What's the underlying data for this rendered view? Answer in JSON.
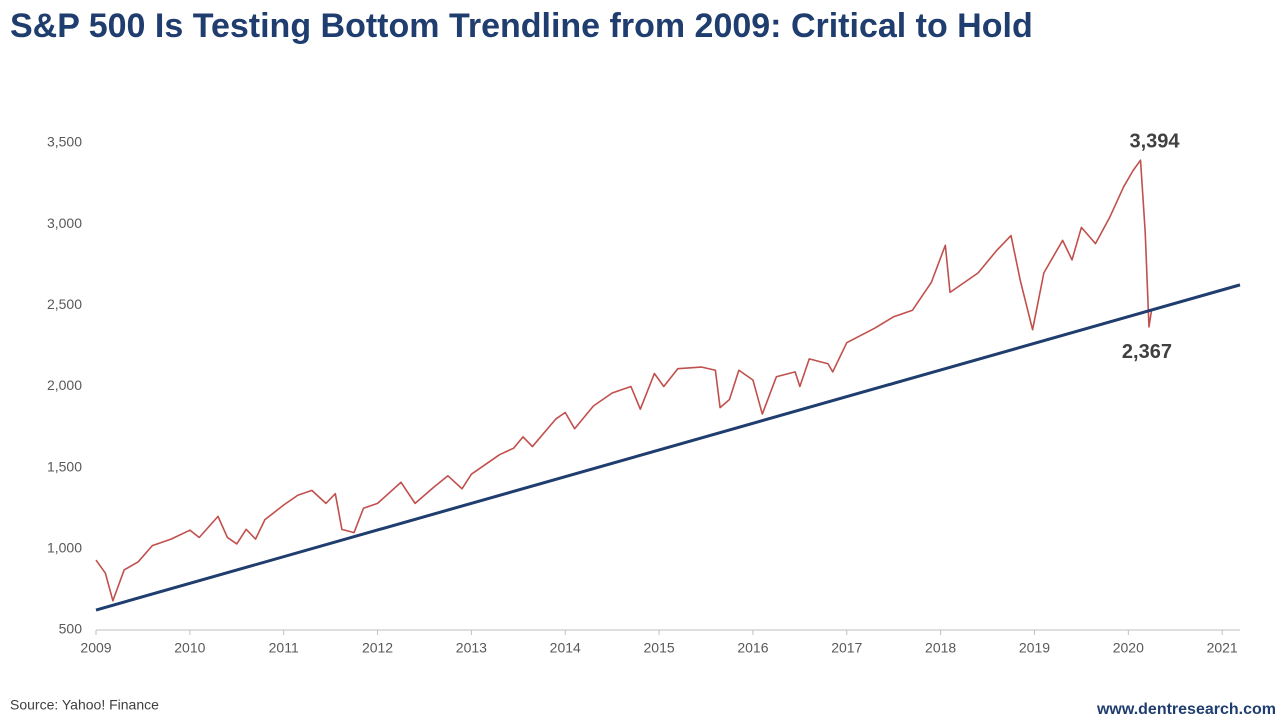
{
  "chart_data": {
    "type": "line",
    "title": "S&P 500 Is Testing Bottom Trendline from 2009: Critical to Hold",
    "source": "Source: Yahoo! Finance",
    "website": "www.dentresearch.com",
    "annotations": [
      {
        "text": "3,394"
      },
      {
        "text": "2,367"
      }
    ],
    "xlim": [
      2009,
      2021.19
    ],
    "xticks": [
      2009,
      2010,
      2011,
      2012,
      2013,
      2014,
      2015,
      2016,
      2017,
      2018,
      2019,
      2020,
      2021
    ],
    "ylim": [
      500,
      3500
    ],
    "yticks": [
      {
        "value": 500,
        "label": "500"
      },
      {
        "value": 1000,
        "label": "1,000"
      },
      {
        "value": 1500,
        "label": "1,500"
      },
      {
        "value": 2000,
        "label": "2,000"
      },
      {
        "value": 2500,
        "label": "2,500"
      },
      {
        "value": 3000,
        "label": "3,000"
      },
      {
        "value": 3500,
        "label": "3,500"
      }
    ],
    "series": [
      {
        "name": "S&P 500",
        "color": "#c0504d",
        "x": [
          2009.0,
          2009.1,
          2009.18,
          2009.3,
          2009.45,
          2009.6,
          2009.8,
          2010.0,
          2010.1,
          2010.3,
          2010.4,
          2010.5,
          2010.6,
          2010.7,
          2010.8,
          2011.0,
          2011.15,
          2011.3,
          2011.45,
          2011.55,
          2011.62,
          2011.75,
          2011.85,
          2012.0,
          2012.25,
          2012.4,
          2012.6,
          2012.75,
          2012.9,
          2013.0,
          2013.3,
          2013.45,
          2013.55,
          2013.65,
          2013.9,
          2014.0,
          2014.1,
          2014.3,
          2014.5,
          2014.7,
          2014.8,
          2014.95,
          2015.05,
          2015.2,
          2015.45,
          2015.6,
          2015.65,
          2015.75,
          2015.85,
          2016.0,
          2016.1,
          2016.25,
          2016.45,
          2016.5,
          2016.6,
          2016.8,
          2016.85,
          2017.0,
          2017.3,
          2017.5,
          2017.7,
          2017.9,
          2018.05,
          2018.1,
          2018.25,
          2018.4,
          2018.6,
          2018.75,
          2018.85,
          2018.98,
          2019.1,
          2019.3,
          2019.4,
          2019.5,
          2019.65,
          2019.8,
          2019.95,
          2020.05,
          2020.13,
          2020.18,
          2020.22,
          2020.25
        ],
        "values": [
          931,
          850,
          680,
          870,
          920,
          1020,
          1060,
          1115,
          1070,
          1200,
          1070,
          1030,
          1120,
          1060,
          1180,
          1270,
          1330,
          1360,
          1280,
          1340,
          1120,
          1100,
          1250,
          1280,
          1410,
          1280,
          1380,
          1450,
          1370,
          1460,
          1580,
          1620,
          1690,
          1630,
          1800,
          1840,
          1740,
          1880,
          1960,
          2000,
          1860,
          2080,
          2000,
          2110,
          2120,
          2100,
          1870,
          1920,
          2100,
          2040,
          1830,
          2060,
          2090,
          2000,
          2170,
          2140,
          2090,
          2270,
          2360,
          2430,
          2470,
          2640,
          2870,
          2580,
          2640,
          2700,
          2840,
          2930,
          2650,
          2350,
          2700,
          2900,
          2780,
          2980,
          2880,
          3040,
          3230,
          3330,
          3394,
          2950,
          2367,
          2480
        ]
      },
      {
        "name": "Bottom Trendline",
        "color": "#1f3d6e",
        "x": [
          2009.0,
          2021.19
        ],
        "values": [
          623,
          2626
        ]
      }
    ]
  }
}
